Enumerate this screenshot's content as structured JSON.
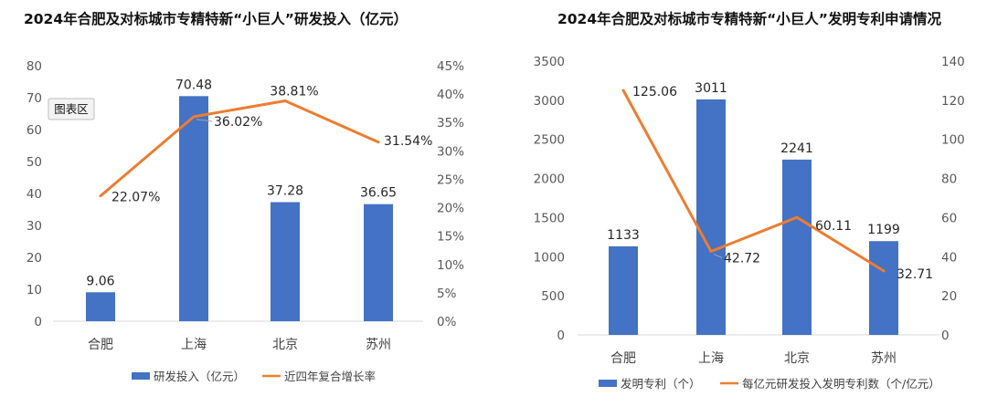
{
  "chart_data": [
    {
      "type": "bar+line",
      "title": "2024年合肥及对标城市专精特新“小巨人”研发投入（亿元）",
      "categories": [
        "合肥",
        "上海",
        "北京",
        "苏州"
      ],
      "series": [
        {
          "name": "研发投入（亿元）",
          "type": "bar",
          "axis": "left",
          "values": [
            9.06,
            70.48,
            37.28,
            36.65
          ],
          "labels": [
            "9.06",
            "70.48",
            "37.28",
            "36.65"
          ]
        },
        {
          "name": "近四年复合增长率",
          "type": "line",
          "axis": "right",
          "values": [
            22.07,
            36.02,
            38.81,
            31.54
          ],
          "labels": [
            "22.07%",
            "36.02%",
            "38.81%",
            "31.54%"
          ]
        }
      ],
      "left_axis": {
        "min": 0,
        "max": 80,
        "step": 10,
        "ticks": [
          "0",
          "10",
          "20",
          "30",
          "40",
          "50",
          "60",
          "70",
          "80"
        ]
      },
      "right_axis": {
        "min": 0,
        "max": 45,
        "step": 5,
        "ticks": [
          "0%",
          "5%",
          "10%",
          "15%",
          "20%",
          "25%",
          "30%",
          "35%",
          "40%",
          "45%"
        ]
      },
      "tooltip": "图表区",
      "grid": false,
      "legend": "bottom"
    },
    {
      "type": "bar+line",
      "title": "2024年合肥及对标城市专精特新“小巨人”发明专利申请情况",
      "categories": [
        "合肥",
        "上海",
        "北京",
        "苏州"
      ],
      "series": [
        {
          "name": "发明专利（个）",
          "type": "bar",
          "axis": "left",
          "values": [
            1133,
            3011,
            2241,
            1199
          ],
          "labels": [
            "1133",
            "3011",
            "2241",
            "1199"
          ]
        },
        {
          "name": "每亿元研发投入发明专利数（个/亿元）",
          "type": "line",
          "axis": "right",
          "values": [
            125.06,
            42.72,
            60.11,
            32.71
          ],
          "labels": [
            "125.06",
            "42.72",
            "60.11",
            "32.71"
          ]
        }
      ],
      "left_axis": {
        "min": 0,
        "max": 3500,
        "step": 500,
        "ticks": [
          "0",
          "500",
          "1000",
          "1500",
          "2000",
          "2500",
          "3000",
          "3500"
        ]
      },
      "right_axis": {
        "min": 0,
        "max": 140,
        "step": 20,
        "ticks": [
          "0",
          "20",
          "40",
          "60",
          "80",
          "100",
          "120",
          "140"
        ]
      },
      "grid": false,
      "legend": "bottom"
    }
  ],
  "colors": {
    "bar": "#4472c4",
    "line": "#ed7d31",
    "axis_text": "#595959"
  }
}
